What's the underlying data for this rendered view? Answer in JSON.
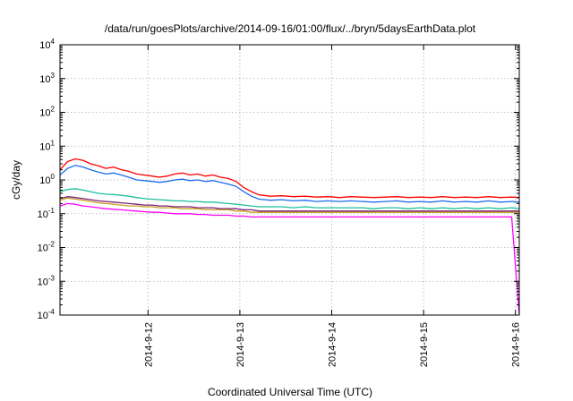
{
  "chart_data": {
    "type": "line",
    "title": "/data/run/goesPlots/archive/2014-09-16/01:00/flux/../bryn/5daysEarthData.plot",
    "xlabel": "Coordinated Universal Time (UTC)",
    "ylabel": "cGy/day",
    "yscale": "log",
    "ylim": [
      0.0001,
      10000
    ],
    "yticks": [
      {
        "base": "10",
        "exp": "-4",
        "value": 0.0001
      },
      {
        "base": "10",
        "exp": "-3",
        "value": 0.001
      },
      {
        "base": "10",
        "exp": "-2",
        "value": 0.01
      },
      {
        "base": "10",
        "exp": "-1",
        "value": 0.1
      },
      {
        "base": "10",
        "exp": "0",
        "value": 1
      },
      {
        "base": "10",
        "exp": "1",
        "value": 10
      },
      {
        "base": "10",
        "exp": "2",
        "value": 100
      },
      {
        "base": "10",
        "exp": "3",
        "value": 1000
      },
      {
        "base": "10",
        "exp": "4",
        "value": 10000
      }
    ],
    "xlim": [
      "2014-09-11T01:00",
      "2014-09-16T01:00"
    ],
    "xticks": [
      "2014-9-12",
      "2014-9-13",
      "2014-9-14",
      "2014-9-15",
      "2014-9-16"
    ],
    "grid": true,
    "x": [
      "2014-09-11T01:00",
      "2014-09-11T03:00",
      "2014-09-11T05:00",
      "2014-09-11T07:00",
      "2014-09-11T09:00",
      "2014-09-11T11:00",
      "2014-09-11T13:00",
      "2014-09-11T15:00",
      "2014-09-11T17:00",
      "2014-09-11T19:00",
      "2014-09-11T21:00",
      "2014-09-11T23:00",
      "2014-09-12T01:00",
      "2014-09-12T03:00",
      "2014-09-12T05:00",
      "2014-09-12T07:00",
      "2014-09-12T09:00",
      "2014-09-12T11:00",
      "2014-09-12T13:00",
      "2014-09-12T15:00",
      "2014-09-12T17:00",
      "2014-09-12T19:00",
      "2014-09-12T21:00",
      "2014-09-12T23:00",
      "2014-09-13T01:00",
      "2014-09-13T03:00",
      "2014-09-13T05:00",
      "2014-09-13T08:00",
      "2014-09-13T11:00",
      "2014-09-13T14:00",
      "2014-09-13T17:00",
      "2014-09-13T20:00",
      "2014-09-13T23:00",
      "2014-09-14T02:00",
      "2014-09-14T05:00",
      "2014-09-14T08:00",
      "2014-09-14T11:00",
      "2014-09-14T14:00",
      "2014-09-14T17:00",
      "2014-09-14T20:00",
      "2014-09-14T23:00",
      "2014-09-15T02:00",
      "2014-09-15T05:00",
      "2014-09-15T08:00",
      "2014-09-15T11:00",
      "2014-09-15T14:00",
      "2014-09-15T17:00",
      "2014-09-15T20:00",
      "2014-09-15T23:00",
      "2014-09-16T01:00"
    ],
    "series": [
      {
        "color": "#ff0000",
        "values": [
          2.0,
          3.5,
          4.2,
          3.8,
          3.0,
          2.6,
          2.2,
          2.4,
          2.0,
          1.8,
          1.5,
          1.4,
          1.3,
          1.2,
          1.3,
          1.5,
          1.6,
          1.4,
          1.5,
          1.3,
          1.4,
          1.2,
          1.1,
          0.9,
          0.6,
          0.45,
          0.36,
          0.33,
          0.34,
          0.32,
          0.33,
          0.31,
          0.32,
          0.3,
          0.32,
          0.31,
          0.3,
          0.31,
          0.32,
          0.3,
          0.31,
          0.3,
          0.32,
          0.3,
          0.31,
          0.3,
          0.32,
          0.3,
          0.31,
          0.3
        ]
      },
      {
        "color": "#1e6cf0",
        "values": [
          1.4,
          2.2,
          2.7,
          2.4,
          2.0,
          1.7,
          1.5,
          1.6,
          1.4,
          1.2,
          1.0,
          0.95,
          0.9,
          0.85,
          0.9,
          1.0,
          1.05,
          0.95,
          1.0,
          0.9,
          0.95,
          0.85,
          0.75,
          0.65,
          0.45,
          0.33,
          0.27,
          0.25,
          0.26,
          0.24,
          0.25,
          0.23,
          0.24,
          0.23,
          0.24,
          0.23,
          0.22,
          0.23,
          0.24,
          0.22,
          0.23,
          0.22,
          0.24,
          0.22,
          0.23,
          0.22,
          0.24,
          0.22,
          0.23,
          0.22
        ]
      },
      {
        "color": "#1fbf9c",
        "values": [
          0.45,
          0.52,
          0.55,
          0.5,
          0.45,
          0.4,
          0.38,
          0.37,
          0.35,
          0.33,
          0.3,
          0.28,
          0.27,
          0.26,
          0.25,
          0.24,
          0.24,
          0.23,
          0.23,
          0.22,
          0.22,
          0.21,
          0.2,
          0.19,
          0.18,
          0.17,
          0.16,
          0.16,
          0.16,
          0.15,
          0.16,
          0.15,
          0.15,
          0.15,
          0.15,
          0.15,
          0.14,
          0.15,
          0.15,
          0.14,
          0.15,
          0.14,
          0.15,
          0.14,
          0.15,
          0.14,
          0.15,
          0.14,
          0.15,
          0.14
        ]
      },
      {
        "color": "#7a1f7a",
        "values": [
          0.28,
          0.32,
          0.3,
          0.28,
          0.26,
          0.24,
          0.23,
          0.22,
          0.21,
          0.2,
          0.19,
          0.18,
          0.18,
          0.17,
          0.17,
          0.16,
          0.16,
          0.16,
          0.15,
          0.15,
          0.15,
          0.14,
          0.14,
          0.14,
          0.13,
          0.13,
          0.12,
          0.12,
          0.12,
          0.12,
          0.12,
          0.12,
          0.12,
          0.12,
          0.12,
          0.12,
          0.12,
          0.12,
          0.12,
          0.12,
          0.12,
          0.12,
          0.12,
          0.12,
          0.12,
          0.12,
          0.12,
          0.12,
          0.12,
          0.12
        ]
      },
      {
        "color": "#c8a020",
        "values": [
          0.25,
          0.29,
          0.27,
          0.25,
          0.23,
          0.21,
          0.2,
          0.19,
          0.18,
          0.17,
          0.17,
          0.16,
          0.16,
          0.15,
          0.15,
          0.15,
          0.14,
          0.14,
          0.14,
          0.13,
          0.13,
          0.13,
          0.13,
          0.12,
          0.12,
          0.11,
          0.11,
          0.11,
          0.11,
          0.11,
          0.11,
          0.11,
          0.11,
          0.11,
          0.11,
          0.11,
          0.11,
          0.11,
          0.11,
          0.11,
          0.11,
          0.11,
          0.11,
          0.11,
          0.11,
          0.11,
          0.11,
          0.11,
          0.11,
          0.11
        ]
      },
      {
        "color": "#ff00ff",
        "values": [
          0.17,
          0.2,
          0.19,
          0.17,
          0.16,
          0.15,
          0.14,
          0.135,
          0.13,
          0.125,
          0.12,
          0.115,
          0.11,
          0.11,
          0.105,
          0.1,
          0.1,
          0.1,
          0.095,
          0.095,
          0.09,
          0.09,
          0.09,
          0.085,
          0.085,
          0.08,
          0.08,
          0.08,
          0.08,
          0.08,
          0.08,
          0.08,
          0.08,
          0.08,
          0.08,
          0.08,
          0.08,
          0.08,
          0.08,
          0.08,
          0.08,
          0.08,
          0.08,
          0.08,
          0.08,
          0.08,
          0.08,
          0.08,
          0.08,
          0.0001
        ]
      }
    ]
  }
}
